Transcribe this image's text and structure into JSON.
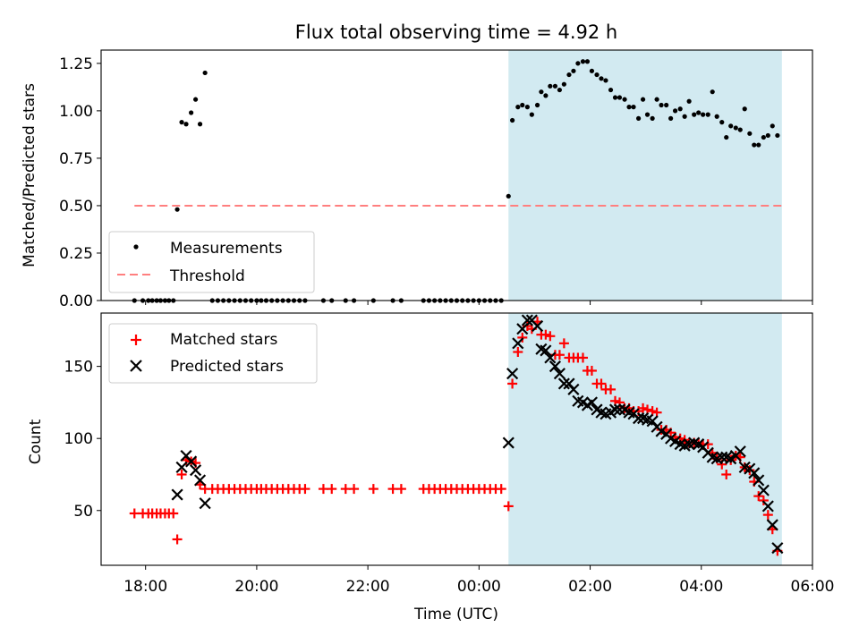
{
  "chart_data": {
    "type": "scatter",
    "title": "Flux total observing time = 4.92 h",
    "xlabel": "Time (UTC)",
    "xlim_hours": [
      17.2,
      30.0
    ],
    "xticks": [
      {
        "value": 18,
        "label": "18:00"
      },
      {
        "value": 20,
        "label": "20:00"
      },
      {
        "value": 22,
        "label": "22:00"
      },
      {
        "value": 24,
        "label": "00:00"
      },
      {
        "value": 26,
        "label": "02:00"
      },
      {
        "value": 28,
        "label": "04:00"
      },
      {
        "value": 30,
        "label": "06:00"
      }
    ],
    "observing_window_hours": [
      24.53,
      29.45
    ],
    "colors": {
      "window": "#add8e6",
      "measurements": "#000000",
      "threshold": "#ff7f7f",
      "matched": "#ff0000",
      "predicted": "#000000"
    },
    "top": {
      "ylabel": "Matched/Predicted stars",
      "ylim": [
        0,
        1.32
      ],
      "yticks": [
        "0.00",
        "0.25",
        "0.50",
        "0.75",
        "1.00",
        "1.25"
      ],
      "threshold": 0.5,
      "threshold_range_hours": [
        17.8,
        29.45
      ],
      "legend": [
        "Measurements",
        "Threshold"
      ],
      "measurements": [
        [
          17.8,
          0
        ],
        [
          17.95,
          0
        ],
        [
          18.05,
          0
        ],
        [
          18.12,
          0
        ],
        [
          18.2,
          0
        ],
        [
          18.27,
          0
        ],
        [
          18.35,
          0
        ],
        [
          18.42,
          0
        ],
        [
          18.5,
          0
        ],
        [
          18.57,
          0.48
        ],
        [
          18.65,
          0.94
        ],
        [
          18.73,
          0.93
        ],
        [
          18.82,
          0.99
        ],
        [
          18.9,
          1.06
        ],
        [
          18.98,
          0.93
        ],
        [
          19.07,
          1.2
        ],
        [
          19.2,
          0
        ],
        [
          19.3,
          0
        ],
        [
          19.4,
          0
        ],
        [
          19.5,
          0
        ],
        [
          19.6,
          0
        ],
        [
          19.7,
          0
        ],
        [
          19.8,
          0
        ],
        [
          19.9,
          0
        ],
        [
          20.0,
          0
        ],
        [
          20.08,
          0
        ],
        [
          20.17,
          0
        ],
        [
          20.27,
          0
        ],
        [
          20.37,
          0
        ],
        [
          20.47,
          0
        ],
        [
          20.57,
          0
        ],
        [
          20.67,
          0
        ],
        [
          20.77,
          0
        ],
        [
          20.87,
          0
        ],
        [
          21.2,
          0
        ],
        [
          21.35,
          0
        ],
        [
          21.6,
          0
        ],
        [
          21.75,
          0
        ],
        [
          22.1,
          0
        ],
        [
          22.45,
          0
        ],
        [
          22.6,
          0
        ],
        [
          23.0,
          0
        ],
        [
          23.1,
          0
        ],
        [
          23.2,
          0
        ],
        [
          23.3,
          0
        ],
        [
          23.4,
          0
        ],
        [
          23.5,
          0
        ],
        [
          23.6,
          0
        ],
        [
          23.7,
          0
        ],
        [
          23.8,
          0
        ],
        [
          23.9,
          0
        ],
        [
          24.0,
          0
        ],
        [
          24.1,
          0
        ],
        [
          24.2,
          0
        ],
        [
          24.3,
          0
        ],
        [
          24.4,
          0
        ],
        [
          24.53,
          0.55
        ],
        [
          24.6,
          0.95
        ],
        [
          24.7,
          1.02
        ],
        [
          24.78,
          1.03
        ],
        [
          24.87,
          1.02
        ],
        [
          24.95,
          0.98
        ],
        [
          25.05,
          1.03
        ],
        [
          25.12,
          1.1
        ],
        [
          25.2,
          1.08
        ],
        [
          25.28,
          1.13
        ],
        [
          25.37,
          1.13
        ],
        [
          25.45,
          1.11
        ],
        [
          25.53,
          1.14
        ],
        [
          25.62,
          1.19
        ],
        [
          25.7,
          1.21
        ],
        [
          25.78,
          1.25
        ],
        [
          25.87,
          1.26
        ],
        [
          25.95,
          1.26
        ],
        [
          26.03,
          1.21
        ],
        [
          26.12,
          1.19
        ],
        [
          26.2,
          1.17
        ],
        [
          26.28,
          1.16
        ],
        [
          26.37,
          1.11
        ],
        [
          26.45,
          1.07
        ],
        [
          26.53,
          1.07
        ],
        [
          26.62,
          1.06
        ],
        [
          26.7,
          1.02
        ],
        [
          26.78,
          1.02
        ],
        [
          26.87,
          0.96
        ],
        [
          26.95,
          1.06
        ],
        [
          27.03,
          0.98
        ],
        [
          27.12,
          0.96
        ],
        [
          27.2,
          1.06
        ],
        [
          27.28,
          1.03
        ],
        [
          27.37,
          1.03
        ],
        [
          27.45,
          0.96
        ],
        [
          27.53,
          1.0
        ],
        [
          27.62,
          1.01
        ],
        [
          27.7,
          0.97
        ],
        [
          27.78,
          1.05
        ],
        [
          27.87,
          0.98
        ],
        [
          27.95,
          0.99
        ],
        [
          28.03,
          0.98
        ],
        [
          28.12,
          0.98
        ],
        [
          28.2,
          1.1
        ],
        [
          28.28,
          0.97
        ],
        [
          28.37,
          0.94
        ],
        [
          28.45,
          0.86
        ],
        [
          28.53,
          0.92
        ],
        [
          28.62,
          0.91
        ],
        [
          28.7,
          0.9
        ],
        [
          28.78,
          1.01
        ],
        [
          28.87,
          0.88
        ],
        [
          28.95,
          0.82
        ],
        [
          29.03,
          0.82
        ],
        [
          29.12,
          0.86
        ],
        [
          29.2,
          0.87
        ],
        [
          29.28,
          0.92
        ],
        [
          29.37,
          0.87
        ]
      ]
    },
    "bottom": {
      "ylabel": "Count",
      "ylim": [
        12,
        187
      ],
      "yticks": [
        50,
        100,
        150
      ],
      "legend": [
        "Matched stars",
        "Predicted stars"
      ],
      "matched": [
        [
          17.8,
          48
        ],
        [
          17.95,
          48
        ],
        [
          18.05,
          48
        ],
        [
          18.12,
          48
        ],
        [
          18.2,
          48
        ],
        [
          18.27,
          48
        ],
        [
          18.35,
          48
        ],
        [
          18.42,
          48
        ],
        [
          18.5,
          48
        ],
        [
          18.57,
          30
        ],
        [
          18.65,
          75
        ],
        [
          18.73,
          85
        ],
        [
          18.82,
          84
        ],
        [
          18.9,
          83
        ],
        [
          18.98,
          68
        ],
        [
          19.07,
          65
        ],
        [
          19.2,
          65
        ],
        [
          19.3,
          65
        ],
        [
          19.4,
          65
        ],
        [
          19.5,
          65
        ],
        [
          19.6,
          65
        ],
        [
          19.7,
          65
        ],
        [
          19.8,
          65
        ],
        [
          19.9,
          65
        ],
        [
          20.0,
          65
        ],
        [
          20.08,
          65
        ],
        [
          20.17,
          65
        ],
        [
          20.27,
          65
        ],
        [
          20.37,
          65
        ],
        [
          20.47,
          65
        ],
        [
          20.57,
          65
        ],
        [
          20.67,
          65
        ],
        [
          20.77,
          65
        ],
        [
          20.87,
          65
        ],
        [
          21.2,
          65
        ],
        [
          21.35,
          65
        ],
        [
          21.6,
          65
        ],
        [
          21.75,
          65
        ],
        [
          22.1,
          65
        ],
        [
          22.45,
          65
        ],
        [
          22.6,
          65
        ],
        [
          23.0,
          65
        ],
        [
          23.1,
          65
        ],
        [
          23.2,
          65
        ],
        [
          23.3,
          65
        ],
        [
          23.4,
          65
        ],
        [
          23.5,
          65
        ],
        [
          23.6,
          65
        ],
        [
          23.7,
          65
        ],
        [
          23.8,
          65
        ],
        [
          23.9,
          65
        ],
        [
          24.0,
          65
        ],
        [
          24.1,
          65
        ],
        [
          24.2,
          65
        ],
        [
          24.3,
          65
        ],
        [
          24.4,
          65
        ],
        [
          24.53,
          53
        ],
        [
          24.6,
          138
        ],
        [
          24.7,
          160
        ],
        [
          24.78,
          170
        ],
        [
          24.87,
          178
        ],
        [
          24.95,
          176
        ],
        [
          25.05,
          181
        ],
        [
          25.12,
          172
        ],
        [
          25.2,
          172
        ],
        [
          25.28,
          171
        ],
        [
          25.37,
          158
        ],
        [
          25.45,
          158
        ],
        [
          25.53,
          166
        ],
        [
          25.62,
          156
        ],
        [
          25.7,
          156
        ],
        [
          25.78,
          156
        ],
        [
          25.87,
          156
        ],
        [
          25.95,
          147
        ],
        [
          26.03,
          147
        ],
        [
          26.12,
          138
        ],
        [
          26.2,
          138
        ],
        [
          26.28,
          134
        ],
        [
          26.37,
          134
        ],
        [
          26.45,
          126
        ],
        [
          26.53,
          125
        ],
        [
          26.62,
          121
        ],
        [
          26.7,
          121
        ],
        [
          26.78,
          119
        ],
        [
          26.87,
          119
        ],
        [
          26.95,
          121
        ],
        [
          27.03,
          120
        ],
        [
          27.12,
          119
        ],
        [
          27.2,
          118
        ],
        [
          27.28,
          106
        ],
        [
          27.37,
          106
        ],
        [
          27.45,
          104
        ],
        [
          27.53,
          101
        ],
        [
          27.62,
          100
        ],
        [
          27.7,
          99
        ],
        [
          27.78,
          97
        ],
        [
          27.87,
          97
        ],
        [
          27.95,
          97
        ],
        [
          28.03,
          96
        ],
        [
          28.12,
          96
        ],
        [
          28.2,
          90
        ],
        [
          28.28,
          86
        ],
        [
          28.37,
          82
        ],
        [
          28.45,
          75
        ],
        [
          28.53,
          85
        ],
        [
          28.62,
          88
        ],
        [
          28.7,
          87
        ],
        [
          28.78,
          80
        ],
        [
          28.87,
          78
        ],
        [
          28.95,
          70
        ],
        [
          29.03,
          60
        ],
        [
          29.12,
          57
        ],
        [
          29.2,
          47
        ],
        [
          29.28,
          37
        ],
        [
          29.37,
          22
        ]
      ],
      "predicted": [
        [
          18.57,
          61
        ],
        [
          18.65,
          80
        ],
        [
          18.73,
          88
        ],
        [
          18.82,
          84
        ],
        [
          18.9,
          78
        ],
        [
          18.98,
          71
        ],
        [
          19.07,
          55
        ],
        [
          24.53,
          97
        ],
        [
          24.6,
          145
        ],
        [
          24.7,
          166
        ],
        [
          24.78,
          176
        ],
        [
          24.87,
          182
        ],
        [
          24.95,
          182
        ],
        [
          25.05,
          178
        ],
        [
          25.12,
          162
        ],
        [
          25.2,
          161
        ],
        [
          25.28,
          156
        ],
        [
          25.37,
          150
        ],
        [
          25.45,
          145
        ],
        [
          25.53,
          138
        ],
        [
          25.62,
          138
        ],
        [
          25.7,
          134
        ],
        [
          25.78,
          126
        ],
        [
          25.87,
          125
        ],
        [
          25.95,
          123
        ],
        [
          26.03,
          125
        ],
        [
          26.12,
          120
        ],
        [
          26.2,
          118
        ],
        [
          26.28,
          117
        ],
        [
          26.37,
          118
        ],
        [
          26.45,
          120
        ],
        [
          26.53,
          120
        ],
        [
          26.62,
          120
        ],
        [
          26.7,
          118
        ],
        [
          26.78,
          117
        ],
        [
          26.87,
          114
        ],
        [
          26.95,
          114
        ],
        [
          27.03,
          113
        ],
        [
          27.12,
          112
        ],
        [
          27.2,
          108
        ],
        [
          27.28,
          105
        ],
        [
          27.37,
          103
        ],
        [
          27.45,
          100
        ],
        [
          27.53,
          98
        ],
        [
          27.62,
          96
        ],
        [
          27.7,
          95
        ],
        [
          27.78,
          96
        ],
        [
          27.87,
          97
        ],
        [
          27.95,
          96
        ],
        [
          28.03,
          94
        ],
        [
          28.12,
          90
        ],
        [
          28.2,
          87
        ],
        [
          28.28,
          86
        ],
        [
          28.37,
          87
        ],
        [
          28.45,
          87
        ],
        [
          28.53,
          86
        ],
        [
          28.62,
          88
        ],
        [
          28.7,
          91
        ],
        [
          28.78,
          80
        ],
        [
          28.87,
          79
        ],
        [
          28.95,
          76
        ],
        [
          29.03,
          71
        ],
        [
          29.12,
          64
        ],
        [
          29.2,
          53
        ],
        [
          29.28,
          40
        ],
        [
          29.37,
          24
        ]
      ]
    }
  }
}
